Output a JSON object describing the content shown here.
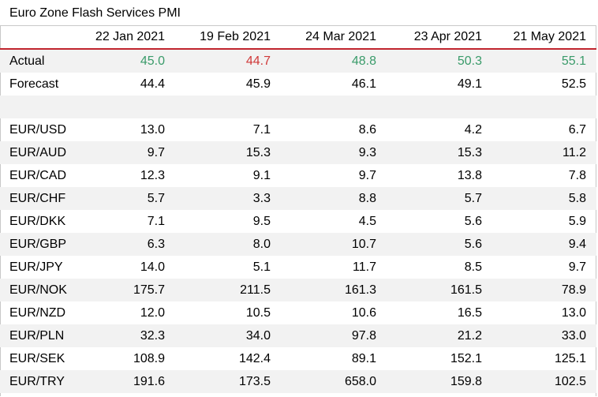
{
  "title": "Euro Zone Flash Services PMI",
  "columns": [
    "",
    "22 Jan 2021",
    "19 Feb 2021",
    "24 Mar 2021",
    "23 Apr 2021",
    "21 May 2021"
  ],
  "colors": {
    "beat": "#3a9b6a",
    "miss": "#d03a3a",
    "header_rule": "#c0252e",
    "band": "#f2f2f2"
  },
  "actual": {
    "label": "Actual",
    "values": [
      "45.0",
      "44.7",
      "48.8",
      "50.3",
      "55.1"
    ],
    "status": [
      "beat",
      "miss",
      "beat",
      "beat",
      "beat"
    ]
  },
  "forecast": {
    "label": "Forecast",
    "values": [
      "44.4",
      "45.9",
      "46.1",
      "49.1",
      "52.5"
    ]
  },
  "pairs": [
    {
      "label": "EUR/USD",
      "values": [
        "13.0",
        "7.1",
        "8.6",
        "4.2",
        "6.7"
      ]
    },
    {
      "label": "EUR/AUD",
      "values": [
        "9.7",
        "15.3",
        "9.3",
        "15.3",
        "11.2"
      ]
    },
    {
      "label": "EUR/CAD",
      "values": [
        "12.3",
        "9.1",
        "9.7",
        "13.8",
        "7.8"
      ]
    },
    {
      "label": "EUR/CHF",
      "values": [
        "5.7",
        "3.3",
        "8.8",
        "5.7",
        "5.8"
      ]
    },
    {
      "label": "EUR/DKK",
      "values": [
        "7.1",
        "9.5",
        "4.5",
        "5.6",
        "5.9"
      ]
    },
    {
      "label": "EUR/GBP",
      "values": [
        "6.3",
        "8.0",
        "10.7",
        "5.6",
        "9.4"
      ]
    },
    {
      "label": "EUR/JPY",
      "values": [
        "14.0",
        "5.1",
        "11.7",
        "8.5",
        "9.7"
      ]
    },
    {
      "label": "EUR/NOK",
      "values": [
        "175.7",
        "211.5",
        "161.3",
        "161.5",
        "78.9"
      ]
    },
    {
      "label": "EUR/NZD",
      "values": [
        "12.0",
        "10.5",
        "10.6",
        "16.5",
        "13.0"
      ]
    },
    {
      "label": "EUR/PLN",
      "values": [
        "32.3",
        "34.0",
        "97.8",
        "21.2",
        "33.0"
      ]
    },
    {
      "label": "EUR/SEK",
      "values": [
        "108.9",
        "142.4",
        "89.1",
        "152.1",
        "125.1"
      ]
    },
    {
      "label": "EUR/TRY",
      "values": [
        "191.6",
        "173.5",
        "658.0",
        "159.8",
        "102.5"
      ]
    }
  ]
}
